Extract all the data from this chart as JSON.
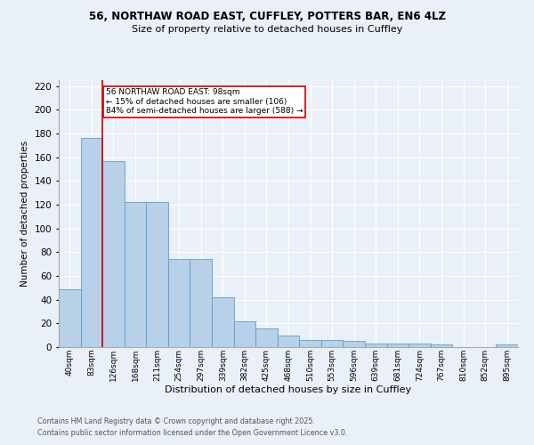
{
  "title1": "56, NORTHAW ROAD EAST, CUFFLEY, POTTERS BAR, EN6 4LZ",
  "title2": "Size of property relative to detached houses in Cuffley",
  "xlabel": "Distribution of detached houses by size in Cuffley",
  "ylabel": "Number of detached properties",
  "categories": [
    "40sqm",
    "83sqm",
    "126sqm",
    "168sqm",
    "211sqm",
    "254sqm",
    "297sqm",
    "339sqm",
    "382sqm",
    "425sqm",
    "468sqm",
    "510sqm",
    "553sqm",
    "596sqm",
    "639sqm",
    "681sqm",
    "724sqm",
    "767sqm",
    "810sqm",
    "852sqm",
    "895sqm"
  ],
  "values": [
    49,
    176,
    157,
    122,
    122,
    74,
    74,
    42,
    22,
    16,
    10,
    6,
    6,
    5,
    3,
    3,
    3,
    2,
    0,
    0,
    2
  ],
  "bar_color": "#b8d0e8",
  "bar_edge_color": "#5a9fd4",
  "annotation_text": "56 NORTHAW ROAD EAST: 98sqm\n← 15% of detached houses are smaller (106)\n84% of semi-detached houses are larger (588) →",
  "annotation_box_color": "#ffffff",
  "annotation_box_edge": "#cc0000",
  "annotation_text_color": "#000000",
  "vline_color": "#cc0000",
  "vline_x": 1.5,
  "footer1": "Contains HM Land Registry data © Crown copyright and database right 2025.",
  "footer2": "Contains public sector information licensed under the Open Government Licence v3.0.",
  "bg_color": "#eaf0f8",
  "plot_bg_color": "#eaf0f8",
  "grid_color": "#ffffff",
  "ylim": [
    0,
    225
  ],
  "yticks": [
    0,
    20,
    40,
    60,
    80,
    100,
    120,
    140,
    160,
    180,
    200,
    220
  ]
}
